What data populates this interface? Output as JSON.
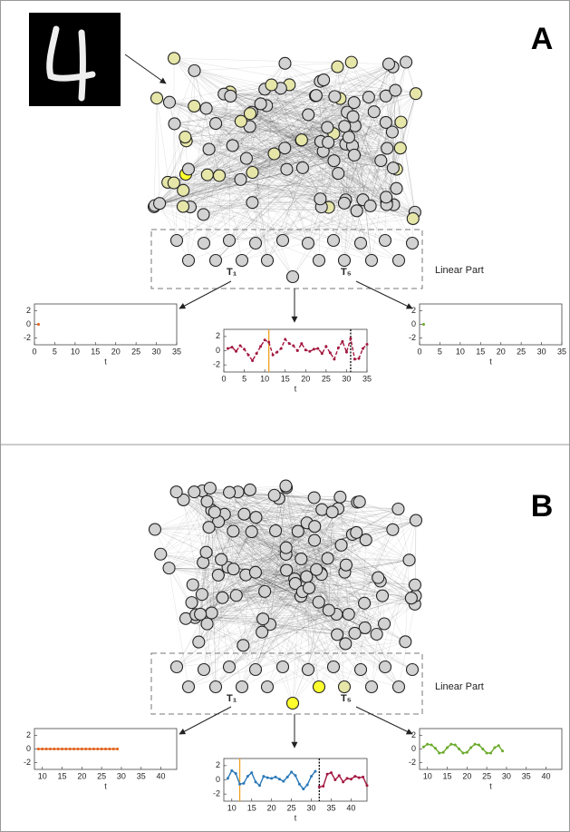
{
  "panels": [
    {
      "label": "A",
      "linear_part": "Linear Part",
      "t_first": "T₁",
      "t_last": "T₅",
      "charts": [
        {
          "type": "line",
          "xlabel": "t",
          "xlim": [
            0,
            35
          ],
          "ylim": [
            -3,
            3
          ],
          "xticks": [
            0,
            5,
            10,
            15,
            20,
            25,
            30,
            35
          ],
          "yticks": [
            -2,
            0,
            2
          ],
          "series": [
            {
              "color": "#e0601a",
              "dashed": false,
              "x": [
                1
              ],
              "values": [
                0
              ]
            }
          ],
          "markers": []
        },
        {
          "type": "line",
          "xlabel": "t",
          "xlim": [
            0,
            35
          ],
          "ylim": [
            -3,
            3
          ],
          "xticks": [
            0,
            5,
            10,
            15,
            20,
            25,
            30,
            35
          ],
          "yticks": [
            -2,
            0,
            2
          ],
          "series": [
            {
              "color": "#a3173f",
              "dashed": true,
              "x": [
                1,
                2,
                3,
                4,
                5,
                6,
                7,
                8,
                9,
                10,
                11,
                12,
                13,
                14,
                15,
                16,
                17,
                18,
                19,
                20,
                21,
                22,
                23,
                24,
                25,
                26,
                27,
                28,
                29,
                30,
                31,
                32,
                33,
                34,
                35
              ],
              "values": [
                0.3,
                0.5,
                -0.1,
                0.7,
                0.2,
                -0.6,
                -1.4,
                -0.4,
                0.6,
                1.5,
                1.2,
                -0.6,
                -0.2,
                0.3,
                1.6,
                1.0,
                0.7,
                0.0,
                1.0,
                0.1,
                -0.1,
                0.2,
                0.3,
                -0.4,
                0.6,
                -0.3,
                -1.2,
                0.4,
                1.3,
                -0.2,
                1.7,
                -1.2,
                -1.1,
                0.3,
                0.9
              ]
            }
          ],
          "markers": [
            {
              "x": 11,
              "color": "#f0a020",
              "dashed": false
            },
            {
              "x": 31,
              "color": "#000000",
              "dashed": true
            }
          ]
        },
        {
          "type": "line",
          "xlabel": "t",
          "xlim": [
            0,
            35
          ],
          "ylim": [
            -3,
            3
          ],
          "xticks": [
            0,
            5,
            10,
            15,
            20,
            25,
            30,
            35
          ],
          "yticks": [
            -2,
            0,
            2
          ],
          "series": [
            {
              "color": "#6aaa2a",
              "dashed": false,
              "x": [
                1
              ],
              "values": [
                0
              ]
            }
          ],
          "markers": []
        }
      ]
    },
    {
      "label": "B",
      "linear_part": "Linear Part",
      "t_first": "T₁",
      "t_last": "T₅",
      "charts": [
        {
          "type": "line",
          "xlabel": "t",
          "xlim": [
            8,
            44
          ],
          "ylim": [
            -3,
            3
          ],
          "xticks": [
            10,
            15,
            20,
            25,
            30,
            35,
            40
          ],
          "yticks": [
            -2,
            0,
            2
          ],
          "series": [
            {
              "color": "#e0601a",
              "dashed": false,
              "x": [
                9,
                10,
                11,
                12,
                13,
                14,
                15,
                16,
                17,
                18,
                19,
                20,
                21,
                22,
                23,
                24,
                25,
                26,
                27,
                28,
                29
              ],
              "values": [
                0,
                0,
                0,
                0,
                0,
                0,
                0,
                0,
                0,
                0,
                0,
                0,
                0,
                0,
                0,
                0,
                0,
                0,
                0,
                0,
                0
              ]
            }
          ],
          "markers": []
        },
        {
          "type": "line",
          "xlabel": "t",
          "xlim": [
            8,
            44
          ],
          "ylim": [
            -3,
            3
          ],
          "xticks": [
            10,
            15,
            20,
            25,
            30,
            35,
            40
          ],
          "yticks": [
            -2,
            0,
            2
          ],
          "series": [
            {
              "color": "#2a78b8",
              "dashed": false,
              "x": [
                9,
                10,
                11,
                12,
                13,
                14,
                15,
                16,
                17,
                18,
                19,
                20,
                21,
                22,
                23,
                24,
                25,
                26,
                27,
                28,
                29,
                30,
                31
              ],
              "values": [
                0.2,
                1.3,
                0.9,
                -0.6,
                -0.5,
                0.5,
                1.0,
                -0.3,
                -0.8,
                0.5,
                0.3,
                0.2,
                0.4,
                0.1,
                -0.2,
                0.4,
                1.1,
                0.6,
                -0.6,
                -1.3,
                -0.7,
                0.5,
                1.2
              ]
            },
            {
              "color": "#a3173f",
              "dashed": false,
              "x": [
                32,
                33,
                34,
                35,
                36,
                37,
                38,
                39,
                40,
                41,
                42,
                43,
                44
              ],
              "values": [
                -1.0,
                -0.9,
                0.8,
                1.0,
                0.0,
                0.6,
                -0.3,
                0.2,
                0.1,
                0.5,
                0.3,
                0.4,
                -0.8
              ]
            }
          ],
          "markers": [
            {
              "x": 12,
              "color": "#f0a020",
              "dashed": false
            },
            {
              "x": 32,
              "color": "#000000",
              "dashed": true
            }
          ]
        },
        {
          "type": "line",
          "xlabel": "t",
          "xlim": [
            8,
            44
          ],
          "ylim": [
            -3,
            3
          ],
          "xticks": [
            10,
            15,
            20,
            25,
            30,
            35,
            40
          ],
          "yticks": [
            -2,
            0,
            2
          ],
          "series": [
            {
              "color": "#6aaa2a",
              "dashed": false,
              "x": [
                9,
                10,
                11,
                12,
                13,
                14,
                15,
                16,
                17,
                18,
                19,
                20,
                21,
                22,
                23,
                24,
                25,
                26,
                27,
                28,
                29
              ],
              "values": [
                0.3,
                0.7,
                0.6,
                0.1,
                -0.6,
                -0.5,
                0.2,
                0.7,
                0.6,
                0.0,
                -0.6,
                -0.5,
                0.2,
                0.7,
                0.6,
                0.0,
                -0.6,
                -0.6,
                0.2,
                0.5,
                -0.3
              ]
            }
          ],
          "markers": []
        }
      ]
    }
  ]
}
